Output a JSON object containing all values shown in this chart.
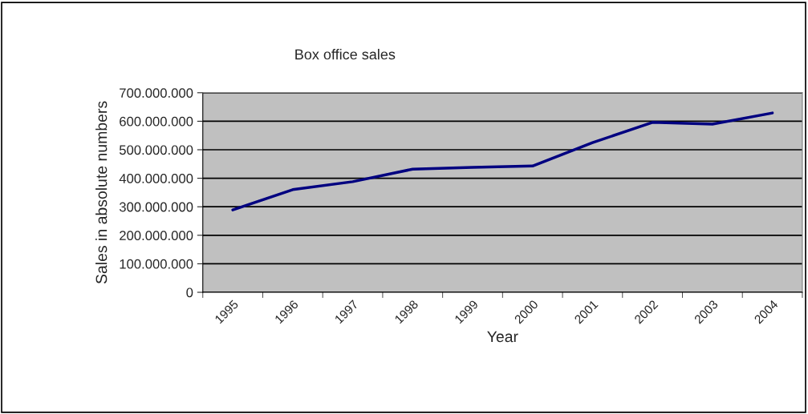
{
  "chart_data": {
    "type": "line",
    "title": "Box office sales",
    "xlabel": "Year",
    "ylabel": "Sales in absolute numbers",
    "categories": [
      "1995",
      "1996",
      "1997",
      "1998",
      "1999",
      "2000",
      "2001",
      "2002",
      "2003",
      "2004"
    ],
    "series": [
      {
        "color": "#000080",
        "values": [
          289000000,
          360000000,
          388000000,
          432000000,
          438000000,
          443000000,
          525000000,
          596000000,
          590000000,
          629000000
        ]
      }
    ],
    "ylim": [
      0,
      700000000
    ],
    "yticks": [
      {
        "value": 0,
        "label": "0"
      },
      {
        "value": 100000000,
        "label": "100.000.000"
      },
      {
        "value": 200000000,
        "label": "200.000.000"
      },
      {
        "value": 300000000,
        "label": "300.000.000"
      },
      {
        "value": 400000000,
        "label": "400.000.000"
      },
      {
        "value": 500000000,
        "label": "500.000.000"
      },
      {
        "value": 600000000,
        "label": "600.000.000"
      },
      {
        "value": 700000000,
        "label": "700.000.000"
      }
    ],
    "grid": "y",
    "marker": "none",
    "line_style": "solid"
  }
}
